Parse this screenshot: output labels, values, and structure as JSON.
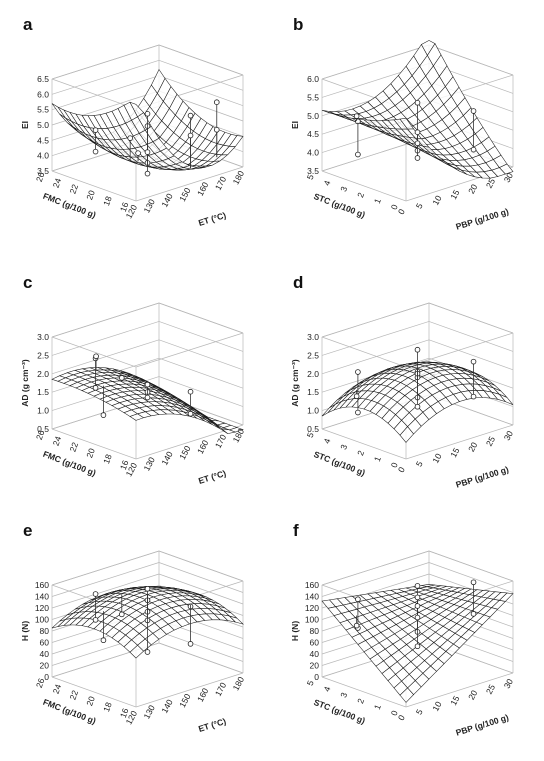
{
  "chart_data": [
    {
      "type": "surface3d",
      "panel": "a",
      "xlabel": "ET (°C)",
      "ylabel": "FMC (g/100 g)",
      "zlabel": "EI",
      "x_ticks": [
        "120",
        "130",
        "140",
        "150",
        "160",
        "170",
        "180"
      ],
      "y_ticks": [
        "16",
        "18",
        "20",
        "22",
        "24",
        "26"
      ],
      "z_ticks": [
        "3.5",
        "4.0",
        "4.5",
        "5.0",
        "5.5",
        "6.0",
        "6.5"
      ],
      "xlim": [
        120,
        180
      ],
      "ylim": [
        16,
        26
      ],
      "zlim": [
        3.5,
        6.5
      ],
      "surface": {
        "model": "quadratic",
        "b0": 3.6,
        "bx": -0.6,
        "by": 0.0,
        "bxx": 1.6,
        "byy": 0.5,
        "bxy": 0.6
      },
      "points": [
        [
          135,
          24,
          4.75
        ],
        [
          135,
          24,
          4.05
        ],
        [
          140,
          20,
          4.3
        ],
        [
          150,
          21,
          4.9
        ],
        [
          150,
          21,
          3.7
        ],
        [
          150,
          21,
          3.3
        ],
        [
          150,
          21,
          5.3
        ],
        [
          160,
          18,
          5.35
        ],
        [
          160,
          18,
          4.7
        ],
        [
          170,
          17,
          5.7
        ],
        [
          170,
          17,
          4.8
        ],
        [
          150,
          21,
          4.05
        ],
        [
          145,
          22,
          4.5
        ]
      ]
    },
    {
      "type": "surface3d",
      "panel": "b",
      "xlabel": "PBP (g/100 g)",
      "ylabel": "STC (g/100 g)",
      "zlabel": "EI",
      "x_ticks": [
        "0",
        "5",
        "10",
        "15",
        "20",
        "25",
        "30"
      ],
      "y_ticks": [
        "0",
        "1",
        "2",
        "3",
        "4",
        "5"
      ],
      "z_ticks": [
        "3.5",
        "4.0",
        "4.5",
        "5.0",
        "5.5",
        "6.0"
      ],
      "xlim": [
        0,
        30
      ],
      "ylim": [
        0,
        5
      ],
      "zlim": [
        3.5,
        6.0
      ],
      "surface": {
        "model": "quadratic",
        "b0": 4.3,
        "bx": -0.3,
        "by": 0.6,
        "bxx": 0.7,
        "byy": 0.15,
        "bxy": 0.9
      },
      "points": [
        [
          3,
          3.5,
          5.0
        ],
        [
          3,
          3.5,
          4.1
        ],
        [
          5,
          4,
          5.0
        ],
        [
          15,
          2.5,
          5.3
        ],
        [
          15,
          2.5,
          4.0
        ],
        [
          15,
          2.5,
          3.8
        ],
        [
          15,
          2.5,
          4.5
        ],
        [
          26,
          1.5,
          4.9
        ],
        [
          26,
          1.5,
          3.85
        ],
        [
          15,
          2.5,
          4.2
        ]
      ]
    },
    {
      "type": "surface3d",
      "panel": "c",
      "xlabel": "ET (°C)",
      "ylabel": "FMC (g/100 g)",
      "zlabel": "AD (g cm⁻³)",
      "x_ticks": [
        "120",
        "130",
        "140",
        "150",
        "160",
        "170",
        "180"
      ],
      "y_ticks": [
        "16",
        "18",
        "20",
        "22",
        "24",
        "26"
      ],
      "z_ticks": [
        "0.5",
        "1.0",
        "1.5",
        "2.0",
        "2.5",
        "3.0"
      ],
      "xlim": [
        120,
        180
      ],
      "ylim": [
        16,
        26
      ],
      "zlim": [
        0.5,
        3.0
      ],
      "surface": {
        "model": "quadratic",
        "b0": 1.55,
        "bx": -0.7,
        "by": 0.25,
        "bxx": -0.45,
        "byy": -0.1,
        "bxy": 0.1
      },
      "points": [
        [
          135,
          24,
          2.35
        ],
        [
          135,
          24,
          1.55
        ],
        [
          130,
          22,
          1.05
        ],
        [
          140,
          25,
          2.25
        ],
        [
          150,
          21,
          1.65
        ],
        [
          150,
          21,
          1.45
        ],
        [
          150,
          21,
          1.3
        ],
        [
          160,
          18,
          1.55
        ],
        [
          160,
          18,
          0.95
        ],
        [
          145,
          23,
          1.75
        ]
      ]
    },
    {
      "type": "surface3d",
      "panel": "d",
      "xlabel": "PBP (g/100 g)",
      "ylabel": "STC (g/100 g)",
      "zlabel": "AD (g cm⁻³)",
      "x_ticks": [
        "0",
        "5",
        "10",
        "15",
        "20",
        "25",
        "30"
      ],
      "y_ticks": [
        "0",
        "1",
        "2",
        "3",
        "4",
        "5"
      ],
      "z_ticks": [
        "0.5",
        "1.0",
        "1.5",
        "2.0",
        "2.5",
        "3.0"
      ],
      "xlim": [
        0,
        30
      ],
      "ylim": [
        0,
        5
      ],
      "zlim": [
        0.5,
        3.0
      ],
      "surface": {
        "model": "quadratic",
        "b0": 2.1,
        "bx": 0.05,
        "by": -0.05,
        "bxx": -0.6,
        "byy": -0.55,
        "bxy": 0.0
      },
      "points": [
        [
          3,
          3.5,
          2.2
        ],
        [
          3,
          3.5,
          1.1
        ],
        [
          15,
          2.5,
          2.6
        ],
        [
          15,
          2.5,
          2.0
        ],
        [
          15,
          2.5,
          1.85
        ],
        [
          15,
          2.5,
          1.95
        ],
        [
          15,
          2.5,
          1.3
        ],
        [
          15,
          2.5,
          1.05
        ],
        [
          26,
          1.5,
          2.1
        ],
        [
          26,
          1.5,
          1.15
        ],
        [
          5,
          4,
          1.4
        ]
      ]
    },
    {
      "type": "surface3d",
      "panel": "e",
      "xlabel": "ET (°C)",
      "ylabel": "FMC (g/100 g)",
      "zlabel": "H (N)",
      "x_ticks": [
        "120",
        "130",
        "140",
        "150",
        "160",
        "170",
        "180"
      ],
      "y_ticks": [
        "16",
        "18",
        "20",
        "22",
        "24",
        "26"
      ],
      "z_ticks": [
        "0",
        "20",
        "40",
        "60",
        "80",
        "100",
        "120",
        "140",
        "160"
      ],
      "xlim": [
        120,
        180
      ],
      "ylim": [
        16,
        26
      ],
      "zlim": [
        0,
        160
      ],
      "surface": {
        "model": "quadratic",
        "b0": 140,
        "bx": 0,
        "by": 0,
        "bxx": -30,
        "byy": -25,
        "bxy": 0
      },
      "points": [
        [
          135,
          24,
          140
        ],
        [
          135,
          24,
          95
        ],
        [
          130,
          22,
          75
        ],
        [
          150,
          21,
          150
        ],
        [
          150,
          21,
          130
        ],
        [
          150,
          21,
          110
        ],
        [
          150,
          21,
          95
        ],
        [
          150,
          21,
          40
        ],
        [
          160,
          18,
          125
        ],
        [
          160,
          18,
          60
        ],
        [
          145,
          23,
          100
        ]
      ]
    },
    {
      "type": "surface3d",
      "panel": "f",
      "xlabel": "PBP (g/100 g)",
      "ylabel": "STC (g/100 g)",
      "zlabel": "H (N)",
      "x_ticks": [
        "0",
        "5",
        "10",
        "15",
        "20",
        "25",
        "30"
      ],
      "y_ticks": [
        "0",
        "1",
        "2",
        "3",
        "4",
        "5"
      ],
      "z_ticks": [
        "0",
        "20",
        "40",
        "60",
        "80",
        "100",
        "120",
        "140",
        "160"
      ],
      "xlim": [
        0,
        30
      ],
      "ylim": [
        0,
        5
      ],
      "zlim": [
        0,
        160
      ],
      "surface": {
        "model": "quadratic",
        "b0": 95,
        "bx": 25,
        "by": 22,
        "bxx": 0,
        "byy": 0,
        "bxy": -40
      },
      "points": [
        [
          3,
          3.5,
          145
        ],
        [
          3,
          3.5,
          95
        ],
        [
          15,
          2.5,
          155
        ],
        [
          15,
          2.5,
          135
        ],
        [
          15,
          2.5,
          120
        ],
        [
          15,
          2.5,
          100
        ],
        [
          15,
          2.5,
          75
        ],
        [
          15,
          2.5,
          50
        ],
        [
          26,
          1.5,
          150
        ],
        [
          26,
          1.5,
          95
        ],
        [
          5,
          4,
          90
        ]
      ]
    }
  ]
}
